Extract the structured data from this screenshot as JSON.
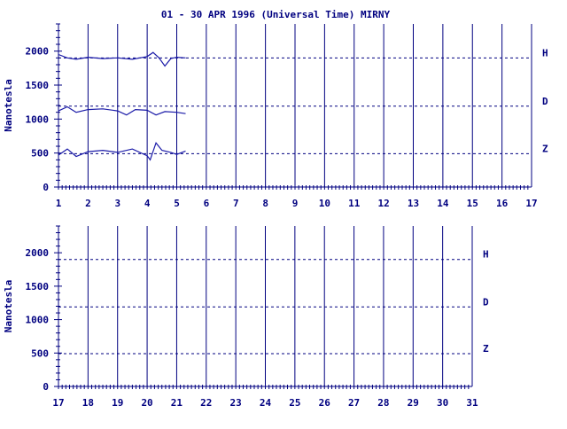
{
  "title": "01 - 30 APR 1996 (Universal Time) MIRNY",
  "colors": {
    "axis": "#000080",
    "trace": "#1a1aa8",
    "background": "#ffffff"
  },
  "chart_data": [
    {
      "type": "line",
      "ylabel": "Nanotesla",
      "ylim": [
        0,
        2400
      ],
      "yticks": [
        0,
        500,
        1000,
        1500,
        2000
      ],
      "xlim": [
        1,
        17
      ],
      "xticks": [
        1,
        2,
        3,
        4,
        5,
        6,
        7,
        8,
        9,
        10,
        11,
        12,
        13,
        14,
        15,
        16,
        17
      ],
      "baselines": [
        {
          "label": "H",
          "value": 1900
        },
        {
          "label": "D",
          "value": 1190
        },
        {
          "label": "Z",
          "value": 490
        }
      ],
      "series": [
        {
          "name": "H",
          "x": [
            1.0,
            1.3,
            1.6,
            2.0,
            2.5,
            3.0,
            3.5,
            4.0,
            4.2,
            4.4,
            4.6,
            4.8,
            5.0,
            5.3
          ],
          "y": [
            1950,
            1900,
            1880,
            1910,
            1890,
            1900,
            1880,
            1920,
            1980,
            1900,
            1780,
            1890,
            1910,
            1900
          ]
        },
        {
          "name": "D",
          "x": [
            1.0,
            1.3,
            1.6,
            2.0,
            2.5,
            3.0,
            3.3,
            3.6,
            4.0,
            4.3,
            4.6,
            5.0,
            5.3
          ],
          "y": [
            1120,
            1180,
            1100,
            1140,
            1150,
            1120,
            1060,
            1140,
            1130,
            1060,
            1110,
            1100,
            1080
          ]
        },
        {
          "name": "Z",
          "x": [
            1.0,
            1.3,
            1.6,
            2.0,
            2.5,
            3.0,
            3.5,
            4.0,
            4.1,
            4.3,
            4.5,
            4.8,
            5.0,
            5.3
          ],
          "y": [
            470,
            560,
            450,
            520,
            540,
            510,
            560,
            460,
            400,
            650,
            540,
            510,
            480,
            530
          ]
        }
      ]
    },
    {
      "type": "line",
      "ylabel": "Nanotesla",
      "ylim": [
        0,
        2400
      ],
      "yticks": [
        0,
        500,
        1000,
        1500,
        2000
      ],
      "xlim": [
        17,
        31
      ],
      "xticks": [
        17,
        18,
        19,
        20,
        21,
        22,
        23,
        24,
        25,
        26,
        27,
        28,
        29,
        30,
        31
      ],
      "baselines": [
        {
          "label": "H",
          "value": 1900
        },
        {
          "label": "D",
          "value": 1190
        },
        {
          "label": "Z",
          "value": 490
        }
      ],
      "series": []
    }
  ]
}
